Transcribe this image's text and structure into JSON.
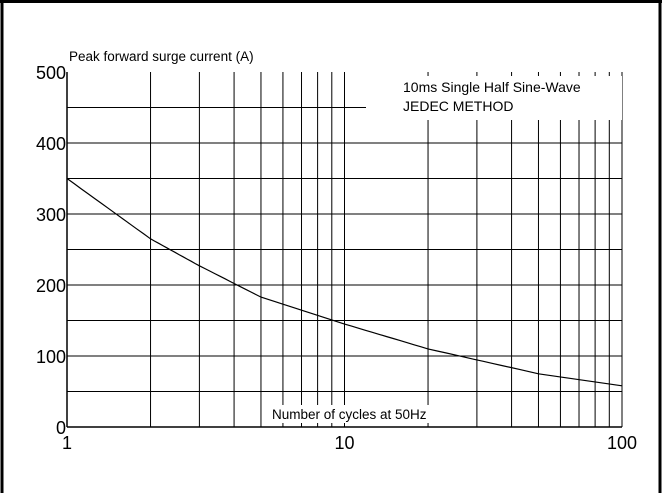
{
  "chart_data": {
    "type": "line",
    "ylabel": "Peak forward surge current (A)",
    "xlabel": "Number of cycles at 50Hz",
    "annotations": [
      "10ms Single Half Sine-Wave",
      "JEDEC METHOD"
    ],
    "x_scale": "log",
    "xlim": [
      1,
      100
    ],
    "ylim": [
      0,
      500
    ],
    "x_ticks": [
      1,
      10,
      100
    ],
    "x_tick_labels": [
      "1",
      "10",
      "100"
    ],
    "y_ticks": [
      0,
      100,
      200,
      300,
      400,
      500
    ],
    "y_tick_labels": [
      "0",
      "100",
      "200",
      "300",
      "400",
      "500"
    ],
    "grid": true,
    "series": [
      {
        "x": [
          1,
          2,
          3,
          5,
          10,
          20,
          50,
          100
        ],
        "y": [
          350,
          265,
          227,
          183,
          145,
          110,
          75,
          58
        ]
      }
    ]
  }
}
